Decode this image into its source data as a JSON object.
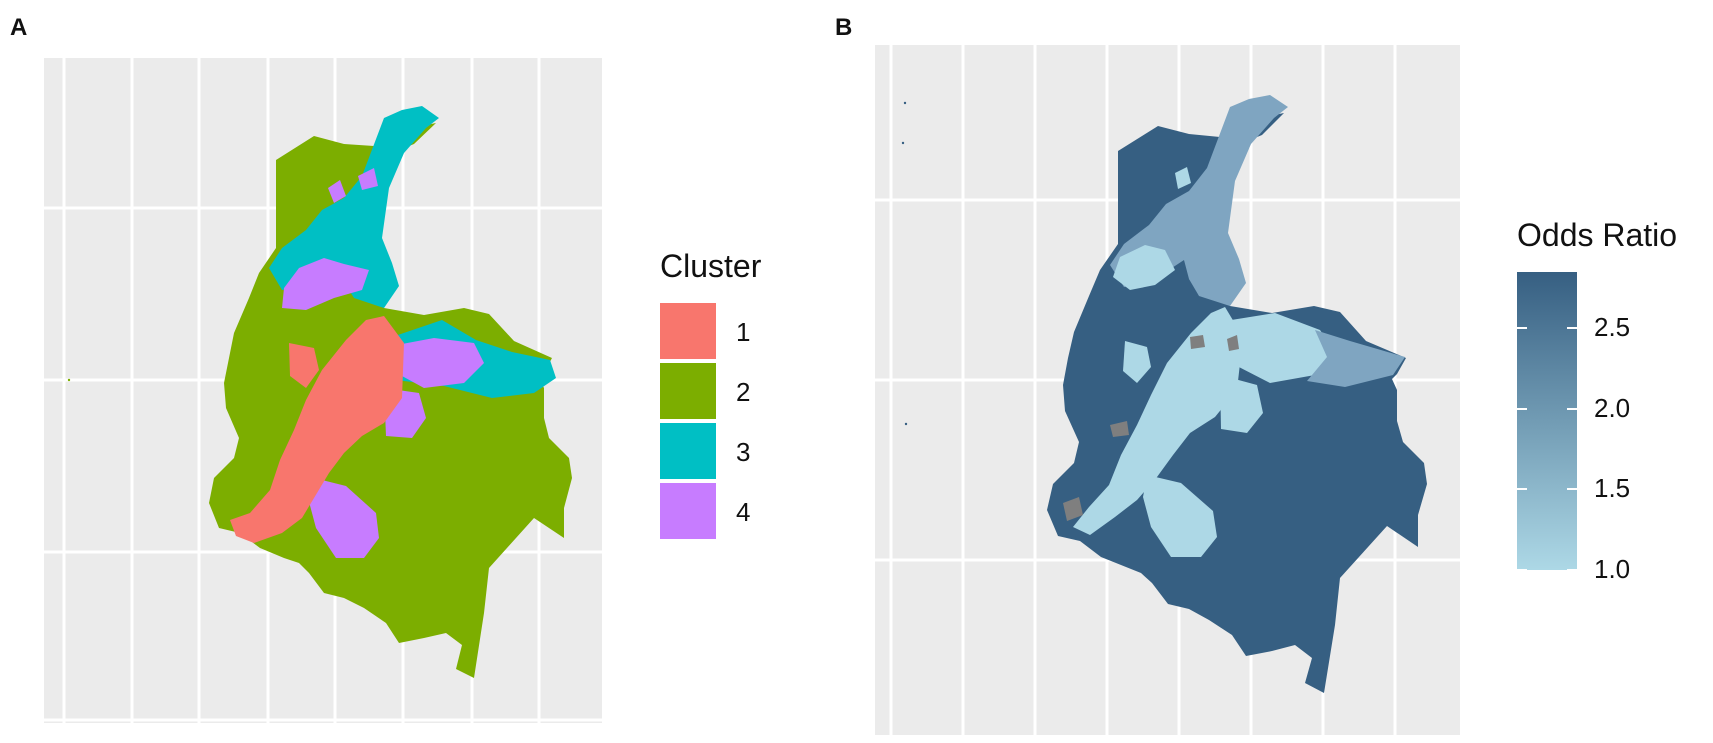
{
  "panels": [
    {
      "label": "A"
    },
    {
      "label": "B"
    }
  ],
  "legend_cluster": {
    "title": "Cluster",
    "items": [
      {
        "label": "1",
        "color": "#F8766D"
      },
      {
        "label": "2",
        "color": "#7CAE00"
      },
      {
        "label": "3",
        "color": "#00BFC4"
      },
      {
        "label": "4",
        "color": "#C77CFF"
      }
    ]
  },
  "legend_odds": {
    "title": "Odds Ratio",
    "ticks": [
      "2.5",
      "2.0",
      "1.5",
      "1.0"
    ],
    "tick_values": [
      2.5,
      2.0,
      1.5,
      1.0
    ],
    "range": [
      1.0,
      2.85
    ],
    "color_low": "#ADD8E6",
    "color_high": "#365F82"
  },
  "colors": {
    "panel_background": "#EBEBEB",
    "grid": "#FFFFFF",
    "na_region": "#7F7F7F"
  }
}
